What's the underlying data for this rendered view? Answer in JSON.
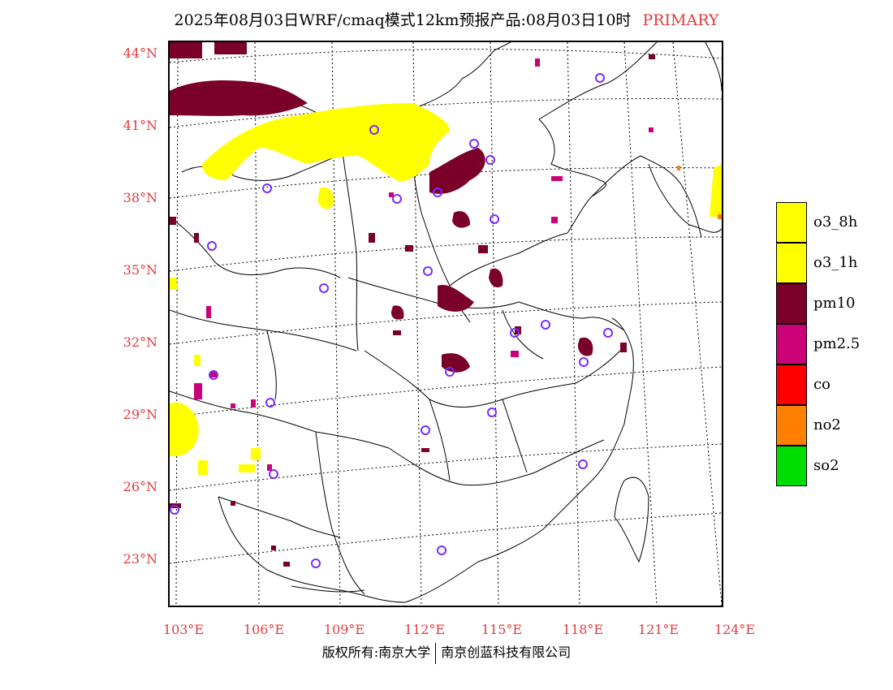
{
  "title": {
    "main": "2025年08月03日WRF/cmaq模式12km预报产品:08月03日10时",
    "tag": "PRIMARY"
  },
  "colors": {
    "label_red": "#e23b3b",
    "o3": "#ffff00",
    "pm10": "#7a0029",
    "pm25": "#cc0077",
    "co": "#ff0000",
    "no2": "#ff7f00",
    "so2": "#00dd00",
    "station": "#7b2cff"
  },
  "axes": {
    "lat_labels": [
      "44°N",
      "41°N",
      "38°N",
      "35°N",
      "32°N",
      "29°N",
      "26°N",
      "23°N"
    ],
    "lon_labels": [
      "103°E",
      "106°E",
      "109°E",
      "112°E",
      "115°E",
      "118°E",
      "121°E",
      "124°E"
    ]
  },
  "legend": [
    {
      "label": "o3_8h",
      "color": "#ffff00"
    },
    {
      "label": "o3_1h",
      "color": "#ffff00"
    },
    {
      "label": "pm10",
      "color": "#7a0029"
    },
    {
      "label": "pm2.5",
      "color": "#cc0077"
    },
    {
      "label": "co",
      "color": "#ff0000"
    },
    {
      "label": "no2",
      "color": "#ff7f00"
    },
    {
      "label": "so2",
      "color": "#00dd00"
    }
  ],
  "footer": {
    "left": "版权所有:南京大学",
    "right": "南京创蓝科技有限公司"
  }
}
